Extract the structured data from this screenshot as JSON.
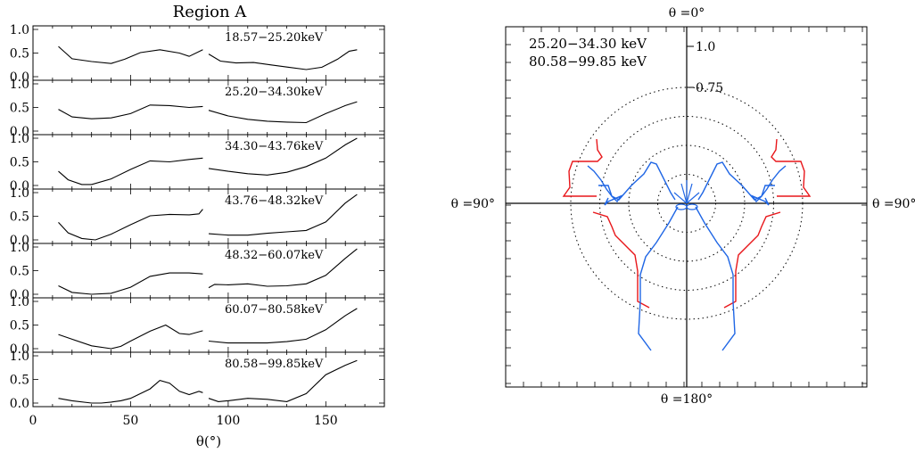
{
  "chart_data": [
    {
      "type": "line",
      "title": "Region A",
      "xlabel": "θ(°)",
      "xlim": [
        0,
        180
      ],
      "xticks": [
        "0",
        "50",
        "100",
        "150"
      ],
      "ylim": [
        0,
        1
      ],
      "yticks": [
        "0.0",
        "0.5",
        "1.0"
      ],
      "panels": [
        {
          "label": "18.57−25.20keV",
          "segments": [
            {
              "x": [
                13,
                20,
                30,
                40,
                47,
                55,
                65,
                75,
                80,
                87
              ],
              "y": [
                0.64,
                0.38,
                0.32,
                0.28,
                0.37,
                0.51,
                0.57,
                0.5,
                0.43,
                0.57
              ]
            },
            {
              "x": [
                90,
                96,
                104,
                113,
                122,
                131,
                140,
                148,
                156,
                162,
                166
              ],
              "y": [
                0.48,
                0.33,
                0.29,
                0.3,
                0.25,
                0.2,
                0.15,
                0.2,
                0.37,
                0.54,
                0.57
              ]
            }
          ]
        },
        {
          "label": "25.20−34.30keV",
          "segments": [
            {
              "x": [
                13,
                20,
                30,
                40,
                50,
                60,
                70,
                80,
                87
              ],
              "y": [
                0.46,
                0.3,
                0.26,
                0.28,
                0.37,
                0.55,
                0.54,
                0.5,
                0.52
              ]
            },
            {
              "x": [
                90,
                100,
                110,
                120,
                130,
                140,
                150,
                160,
                166
              ],
              "y": [
                0.44,
                0.32,
                0.25,
                0.21,
                0.19,
                0.18,
                0.37,
                0.54,
                0.62
              ]
            }
          ]
        },
        {
          "label": "34.30−43.76keV",
          "segments": [
            {
              "x": [
                13,
                18,
                25,
                30,
                40,
                50,
                60,
                70,
                80,
                87
              ],
              "y": [
                0.3,
                0.12,
                0.02,
                0.02,
                0.14,
                0.34,
                0.52,
                0.5,
                0.55,
                0.58
              ]
            },
            {
              "x": [
                90,
                100,
                110,
                120,
                130,
                140,
                150,
                160,
                166
              ],
              "y": [
                0.36,
                0.3,
                0.25,
                0.22,
                0.28,
                0.4,
                0.58,
                0.86,
                1.0
              ]
            }
          ]
        },
        {
          "label": "43.76−48.32keV",
          "segments": [
            {
              "x": [
                13,
                18,
                25,
                32,
                40,
                50,
                60,
                70,
                80,
                85,
                87
              ],
              "y": [
                0.37,
                0.15,
                0.03,
                0.0,
                0.12,
                0.32,
                0.51,
                0.54,
                0.53,
                0.55,
                0.65
              ]
            },
            {
              "x": [
                90,
                100,
                110,
                120,
                130,
                140,
                150,
                160,
                166
              ],
              "y": [
                0.13,
                0.1,
                0.1,
                0.14,
                0.17,
                0.2,
                0.38,
                0.78,
                0.96
              ]
            }
          ]
        },
        {
          "label": "48.32−60.07keV",
          "segments": [
            {
              "x": [
                13,
                20,
                30,
                40,
                50,
                60,
                70,
                80,
                87
              ],
              "y": [
                0.18,
                0.04,
                0.0,
                0.02,
                0.15,
                0.38,
                0.45,
                0.45,
                0.43
              ]
            },
            {
              "x": [
                90,
                93,
                100,
                110,
                120,
                130,
                140,
                150,
                160,
                166
              ],
              "y": [
                0.14,
                0.21,
                0.2,
                0.22,
                0.17,
                0.18,
                0.22,
                0.4,
                0.76,
                0.96
              ]
            }
          ]
        },
        {
          "label": "60.07−80.58keV",
          "segments": [
            {
              "x": [
                13,
                20,
                30,
                40,
                45,
                50,
                60,
                68,
                75,
                80,
                87
              ],
              "y": [
                0.3,
                0.2,
                0.06,
                0.0,
                0.05,
                0.16,
                0.37,
                0.5,
                0.32,
                0.3,
                0.38
              ]
            },
            {
              "x": [
                90,
                100,
                110,
                120,
                130,
                140,
                150,
                160,
                166
              ],
              "y": [
                0.16,
                0.12,
                0.12,
                0.12,
                0.15,
                0.2,
                0.4,
                0.7,
                0.85
              ]
            }
          ]
        },
        {
          "label": "80.58−99.85keV",
          "segments": [
            {
              "x": [
                13,
                20,
                30,
                35,
                40,
                45,
                50,
                60,
                65,
                70,
                75,
                80,
                85,
                87
              ],
              "y": [
                0.1,
                0.05,
                0.0,
                0.0,
                0.02,
                0.05,
                0.1,
                0.3,
                0.48,
                0.42,
                0.25,
                0.18,
                0.25,
                0.22
              ]
            },
            {
              "x": [
                90,
                95,
                100,
                110,
                120,
                130,
                140,
                150,
                160,
                166
              ],
              "y": [
                0.1,
                0.03,
                0.05,
                0.1,
                0.08,
                0.03,
                0.2,
                0.6,
                0.8,
                0.9
              ]
            }
          ]
        }
      ]
    },
    {
      "type": "line",
      "subtype": "polar",
      "top_label": "θ =0°",
      "bottom_label": "θ =180°",
      "left_label": "θ =90°",
      "right_label": "θ =90°",
      "radial_labels": [
        "1.0",
        "0.75"
      ],
      "grid_rings": [
        0.25,
        0.5,
        0.75,
        1.0
      ],
      "series": [
        {
          "name": "25.20−34.30 keV",
          "color": "#e8161a",
          "points": [
            [
              -101,
              -72
            ],
            [
              -107,
              -67
            ],
            [
              -107,
              -55
            ],
            [
              -118,
              -53
            ],
            [
              -129,
              -52
            ],
            [
              -133,
              -28
            ],
            [
              -138,
              -10
            ],
            [
              -128,
              -40
            ],
            [
              -100,
              -53
            ],
            [
              -107,
              -52
            ],
            [
              -112,
              -50
            ],
            [
              -120,
              -52
            ],
            [
              -113,
              -53
            ],
            [
              -105,
              -58
            ]
          ]
        },
        {
          "name": "80.58−99.85 keV",
          "color": "#1f66e5",
          "points": [
            [
              -111,
              -42
            ],
            [
              -103,
              -44
            ],
            [
              -99,
              -57
            ],
            [
              -95,
              -60
            ],
            [
              -89,
              -62
            ],
            [
              -85,
              -60
            ],
            [
              -79,
              -65
            ],
            [
              -77,
              -69
            ],
            [
              -73,
              -74
            ],
            [
              -69,
              -73
            ],
            [
              -65,
              -76
            ],
            [
              -60,
              -73
            ]
          ]
        }
      ]
    }
  ]
}
